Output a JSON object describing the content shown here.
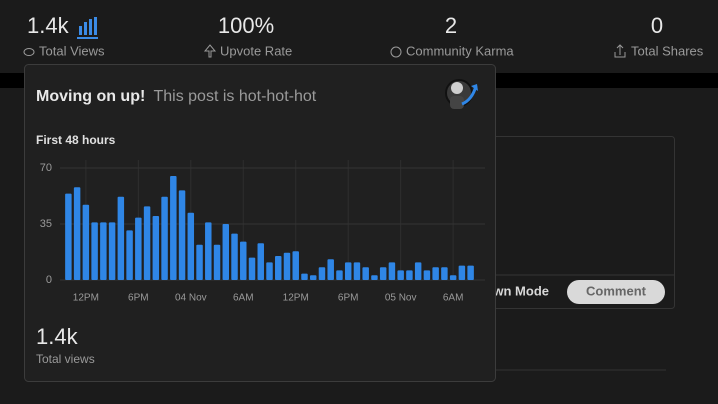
{
  "stats": [
    {
      "value": "1.4k",
      "label": "Total Views"
    },
    {
      "value": "100%",
      "label": "Upvote Rate"
    },
    {
      "value": "2",
      "label": "Community Karma"
    },
    {
      "value": "0",
      "label": "Total Shares"
    }
  ],
  "editor": {
    "mode": "Markdown Mode",
    "button": "Comment"
  },
  "popup": {
    "heading": "Moving on up!",
    "subheading": "This post is hot-hot-hot",
    "total": "1.4k",
    "total_label": "Total views"
  },
  "chart_data": {
    "type": "bar",
    "title": "First 48 hours",
    "color": "#2f86e6",
    "categories": [
      null,
      null,
      "12PM",
      null,
      null,
      null,
      null,
      null,
      "6PM",
      null,
      null,
      null,
      null,
      null,
      "04 Nov",
      null,
      null,
      null,
      null,
      null,
      "6AM",
      null,
      null,
      null,
      null,
      null,
      "12PM",
      null,
      null,
      null,
      null,
      null,
      "6PM",
      null,
      null,
      null,
      null,
      null,
      "05 Nov",
      null,
      null,
      null,
      null,
      null,
      "6AM",
      null,
      null
    ],
    "values": [
      54,
      58,
      47,
      36,
      36,
      36,
      52,
      31,
      39,
      46,
      40,
      52,
      65,
      56,
      42,
      22,
      36,
      22,
      35,
      29,
      24,
      14,
      23,
      11,
      15,
      17,
      18,
      4,
      3,
      8,
      13,
      6,
      11,
      11,
      8,
      3,
      8,
      11,
      6,
      6,
      11,
      6,
      8,
      8,
      3,
      9,
      9
    ],
    "ylim": [
      0,
      70
    ],
    "yticks": [
      0,
      35,
      70
    ],
    "grid": true
  }
}
